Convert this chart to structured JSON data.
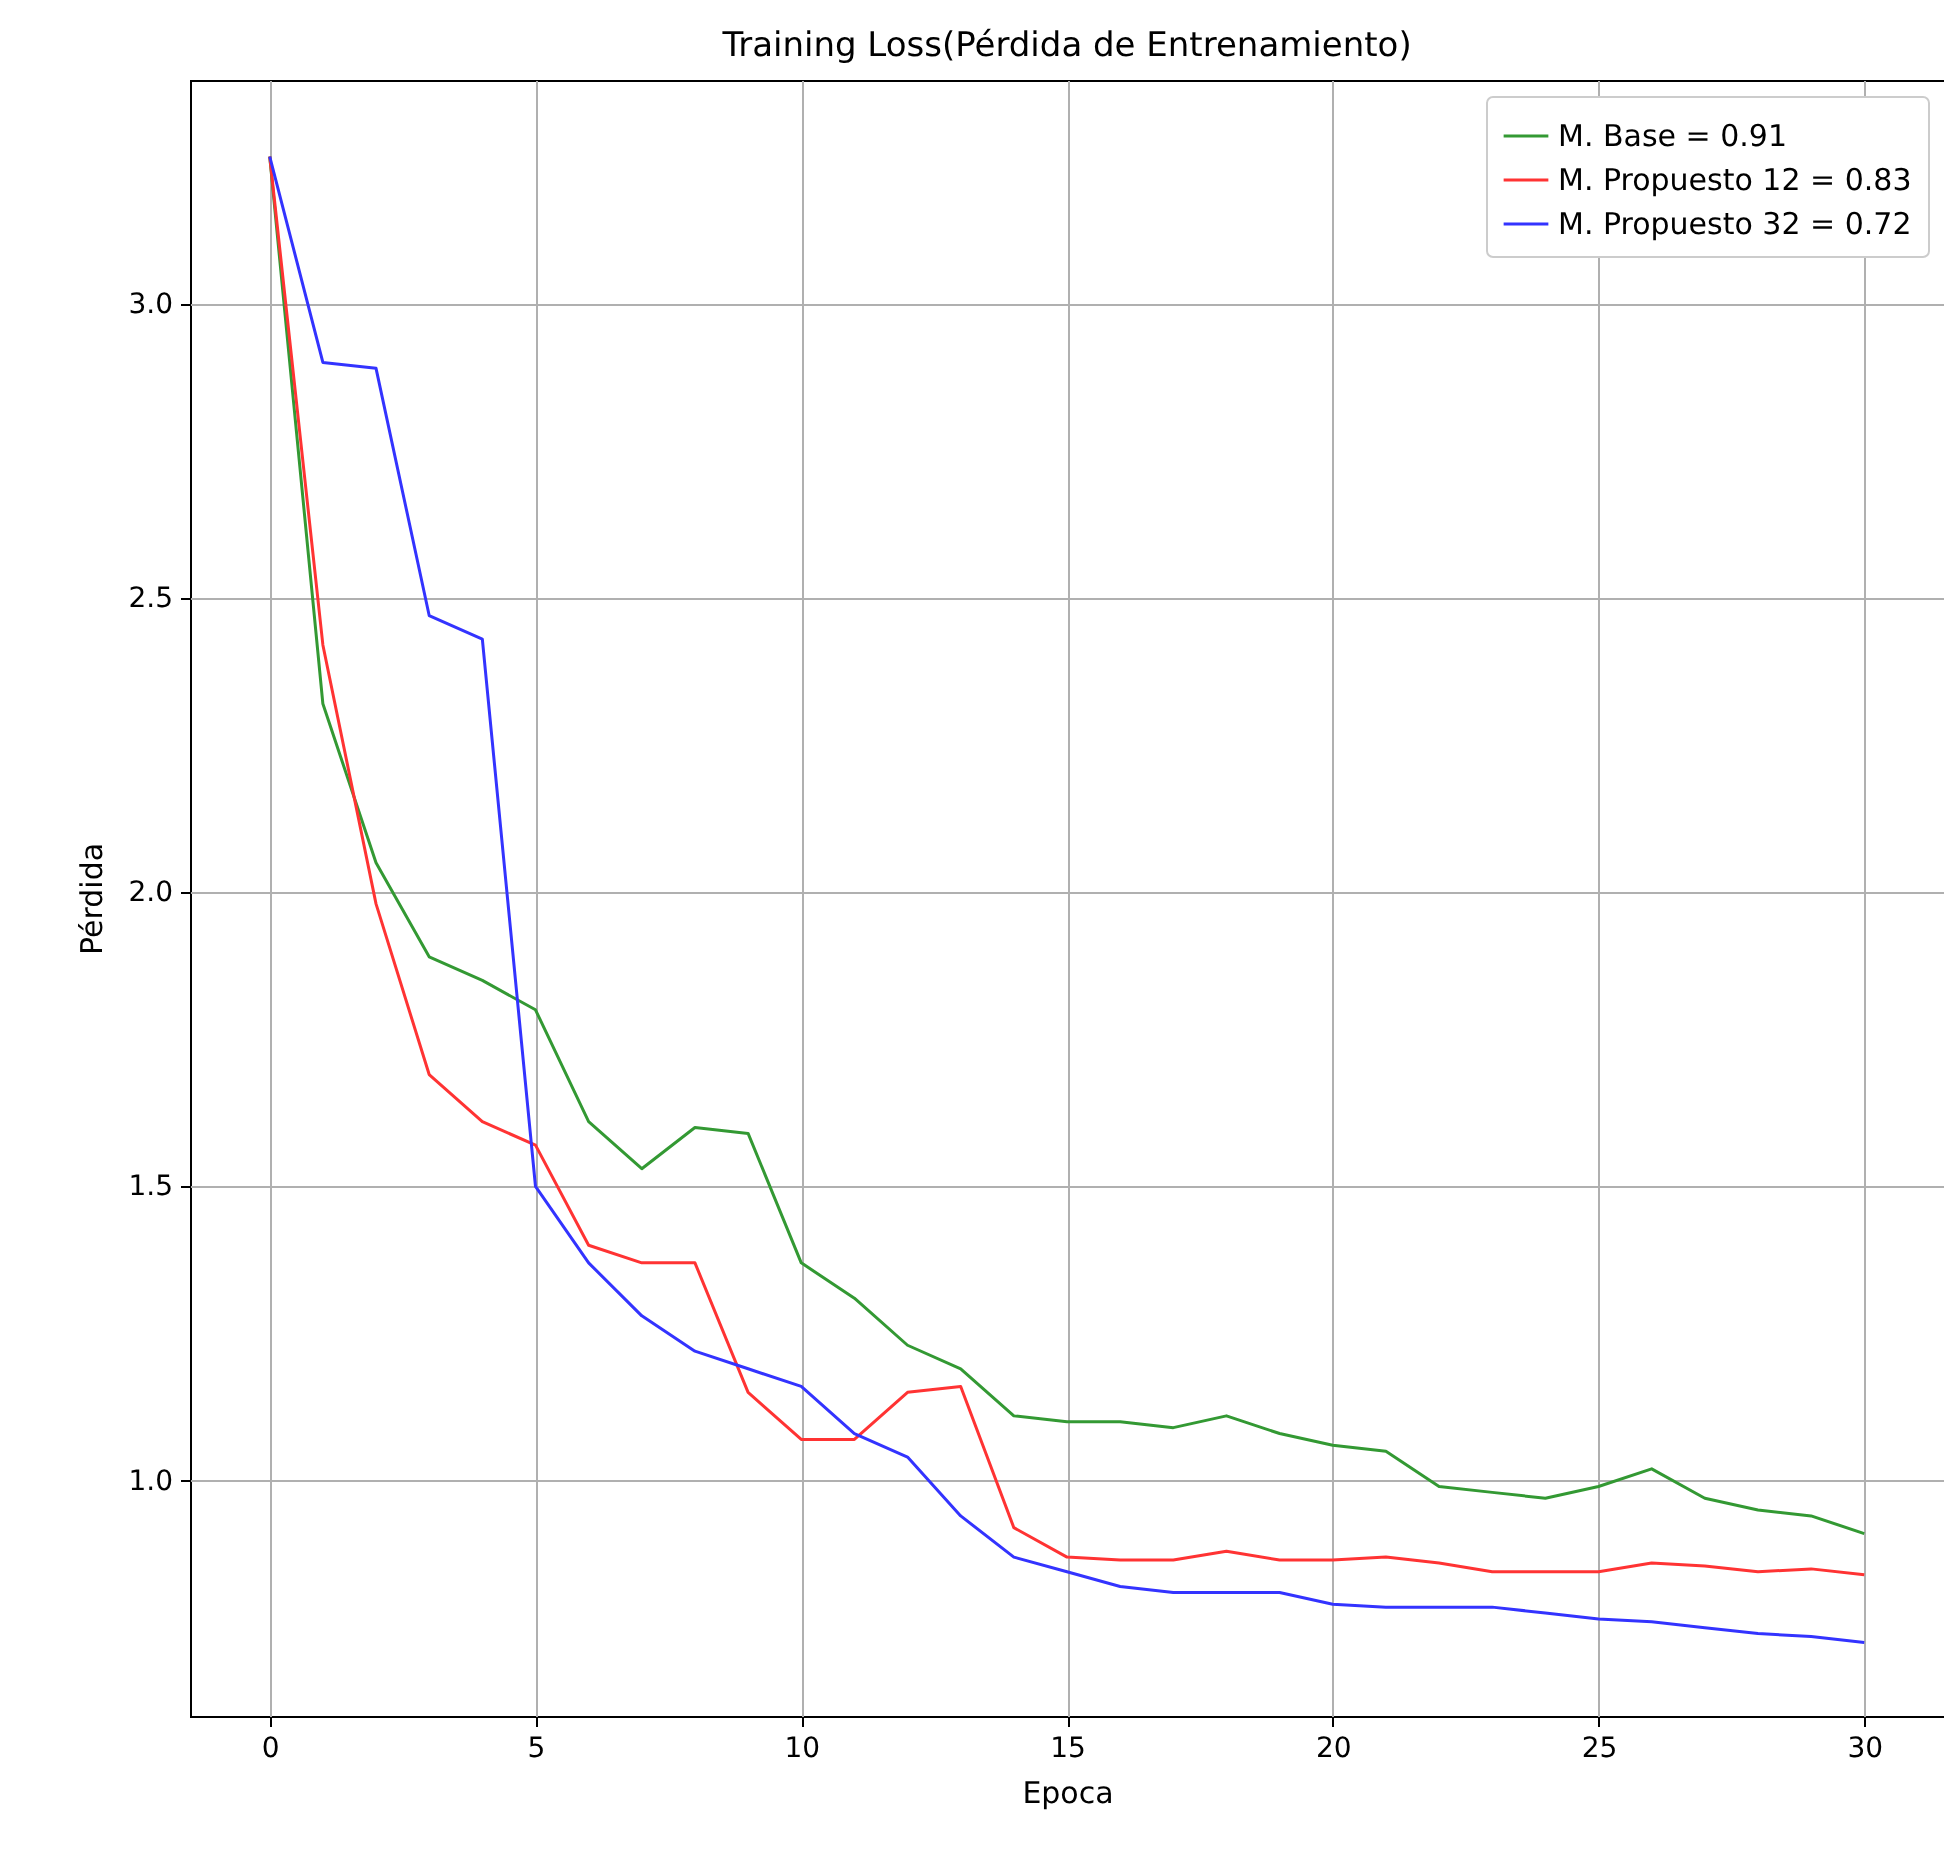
{
  "chart_data": {
    "type": "line",
    "title": "Training Loss(Pérdida de Entrenamiento)",
    "xlabel": "Epoca",
    "ylabel": "Pérdida",
    "x": [
      0,
      1,
      2,
      3,
      4,
      5,
      6,
      7,
      8,
      9,
      10,
      11,
      12,
      13,
      14,
      15,
      16,
      17,
      18,
      19,
      20,
      21,
      22,
      23,
      24,
      25,
      26,
      27,
      28,
      29,
      30
    ],
    "series": [
      {
        "name": "M. Base = 0.91",
        "color": "#339933",
        "values": [
          3.25,
          2.32,
          2.05,
          1.89,
          1.85,
          1.8,
          1.61,
          1.53,
          1.6,
          1.59,
          1.37,
          1.31,
          1.23,
          1.19,
          1.11,
          1.1,
          1.1,
          1.09,
          1.11,
          1.08,
          1.06,
          1.05,
          0.99,
          0.98,
          0.97,
          0.99,
          1.02,
          0.97,
          0.95,
          0.94,
          0.91
        ]
      },
      {
        "name": "M. Propuesto 12 = 0.83",
        "color": "#ff3333",
        "values": [
          3.25,
          2.42,
          1.98,
          1.69,
          1.61,
          1.57,
          1.4,
          1.37,
          1.37,
          1.15,
          1.07,
          1.07,
          1.15,
          1.16,
          0.92,
          0.87,
          0.865,
          0.865,
          0.88,
          0.865,
          0.865,
          0.87,
          0.86,
          0.845,
          0.845,
          0.845,
          0.86,
          0.855,
          0.845,
          0.85,
          0.84
        ]
      },
      {
        "name": "M. Propuesto 32 = 0.72",
        "color": "#3333ff",
        "values": [
          3.25,
          2.9,
          2.89,
          2.47,
          2.43,
          1.5,
          1.37,
          1.28,
          1.22,
          1.19,
          1.16,
          1.08,
          1.04,
          0.94,
          0.87,
          0.845,
          0.82,
          0.81,
          0.81,
          0.81,
          0.79,
          0.785,
          0.785,
          0.785,
          0.775,
          0.765,
          0.76,
          0.75,
          0.74,
          0.735,
          0.725
        ]
      }
    ],
    "xlim": [
      -1.5,
      31.5
    ],
    "xticks": [
      0,
      5,
      10,
      15,
      20,
      25,
      30
    ],
    "ylim": [
      0.6,
      3.38
    ],
    "yticks": [
      {
        "value": 1.0,
        "label": "1.0"
      },
      {
        "value": 1.5,
        "label": "1.5"
      },
      {
        "value": 2.0,
        "label": "2.0"
      },
      {
        "value": 2.5,
        "label": "2.5"
      },
      {
        "value": 3.0,
        "label": "3.0"
      }
    ],
    "grid": true,
    "legend": "top right",
    "line_style": "solid",
    "marker": "none"
  }
}
